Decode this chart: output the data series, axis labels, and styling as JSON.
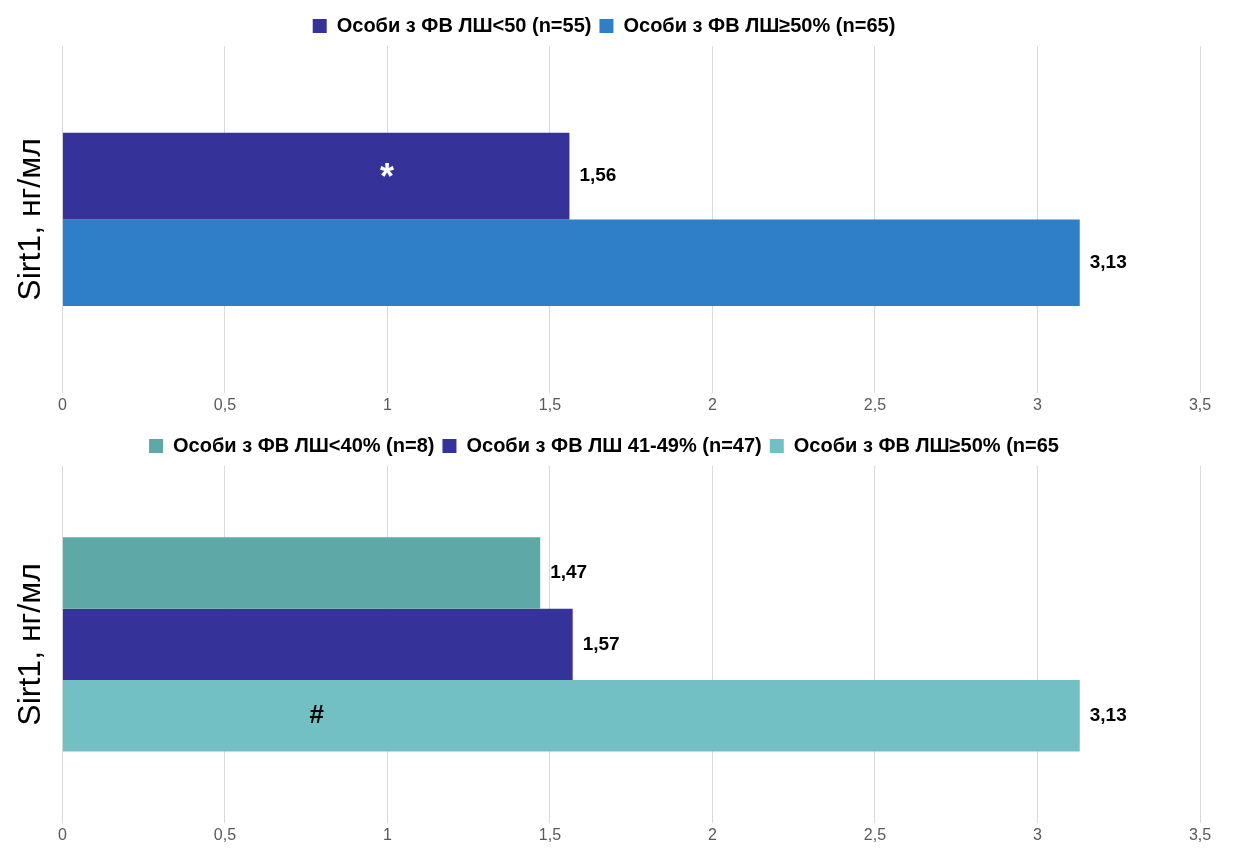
{
  "chart_data": [
    {
      "type": "bar",
      "orientation": "horizontal",
      "ylabel": "Sirt1, нг/мл",
      "categories": [
        null
      ],
      "series": [
        {
          "name": "Особи з ФВ ЛШ<50 (n=55)",
          "color": "#353399",
          "values": [
            1.56
          ],
          "value_labels": [
            "1,56"
          ]
        },
        {
          "name": "Особи з ФВ ЛШ≥50% (n=65)",
          "color": "#2f7fc8",
          "values": [
            3.13
          ],
          "value_labels": [
            "3,13"
          ]
        }
      ],
      "xlim": [
        0,
        3.5
      ],
      "xticks": [
        {
          "value": 0,
          "label": "0"
        },
        {
          "value": 0.5,
          "label": "0,5"
        },
        {
          "value": 1,
          "label": "1"
        },
        {
          "value": 1.5,
          "label": "1,5"
        },
        {
          "value": 2,
          "label": "2"
        },
        {
          "value": 2.5,
          "label": "2,5"
        },
        {
          "value": 3,
          "label": "3"
        },
        {
          "value": 3.5,
          "label": "3,5"
        }
      ],
      "grid": "x",
      "legend": "top",
      "annotations": [
        "*"
      ]
    },
    {
      "type": "bar",
      "orientation": "horizontal",
      "ylabel": "Sirt1, нг/мл",
      "categories": [
        null
      ],
      "series": [
        {
          "name": "Особи з ФВ ЛШ<40% (n=8)",
          "color": "#5fa8a8",
          "values": [
            1.47
          ],
          "value_labels": [
            "1,47"
          ]
        },
        {
          "name": "Особи з ФВ ЛШ 41-49% (n=47)",
          "color": "#353399",
          "values": [
            1.57
          ],
          "value_labels": [
            "1,57"
          ]
        },
        {
          "name": "Особи з ФВ ЛШ≥50% (n=65",
          "color": "#72bfc4",
          "values": [
            3.13
          ],
          "value_labels": [
            "3,13"
          ]
        }
      ],
      "xlim": [
        0,
        3.5
      ],
      "xticks": [
        {
          "value": 0,
          "label": "0"
        },
        {
          "value": 0.5,
          "label": "0,5"
        },
        {
          "value": 1,
          "label": "1"
        },
        {
          "value": 1.5,
          "label": "1,5"
        },
        {
          "value": 2,
          "label": "2"
        },
        {
          "value": 2.5,
          "label": "2,5"
        },
        {
          "value": 3,
          "label": "3"
        },
        {
          "value": 3.5,
          "label": "3,5"
        }
      ],
      "grid": "x",
      "legend": "top",
      "annotations": [
        "#"
      ]
    }
  ]
}
